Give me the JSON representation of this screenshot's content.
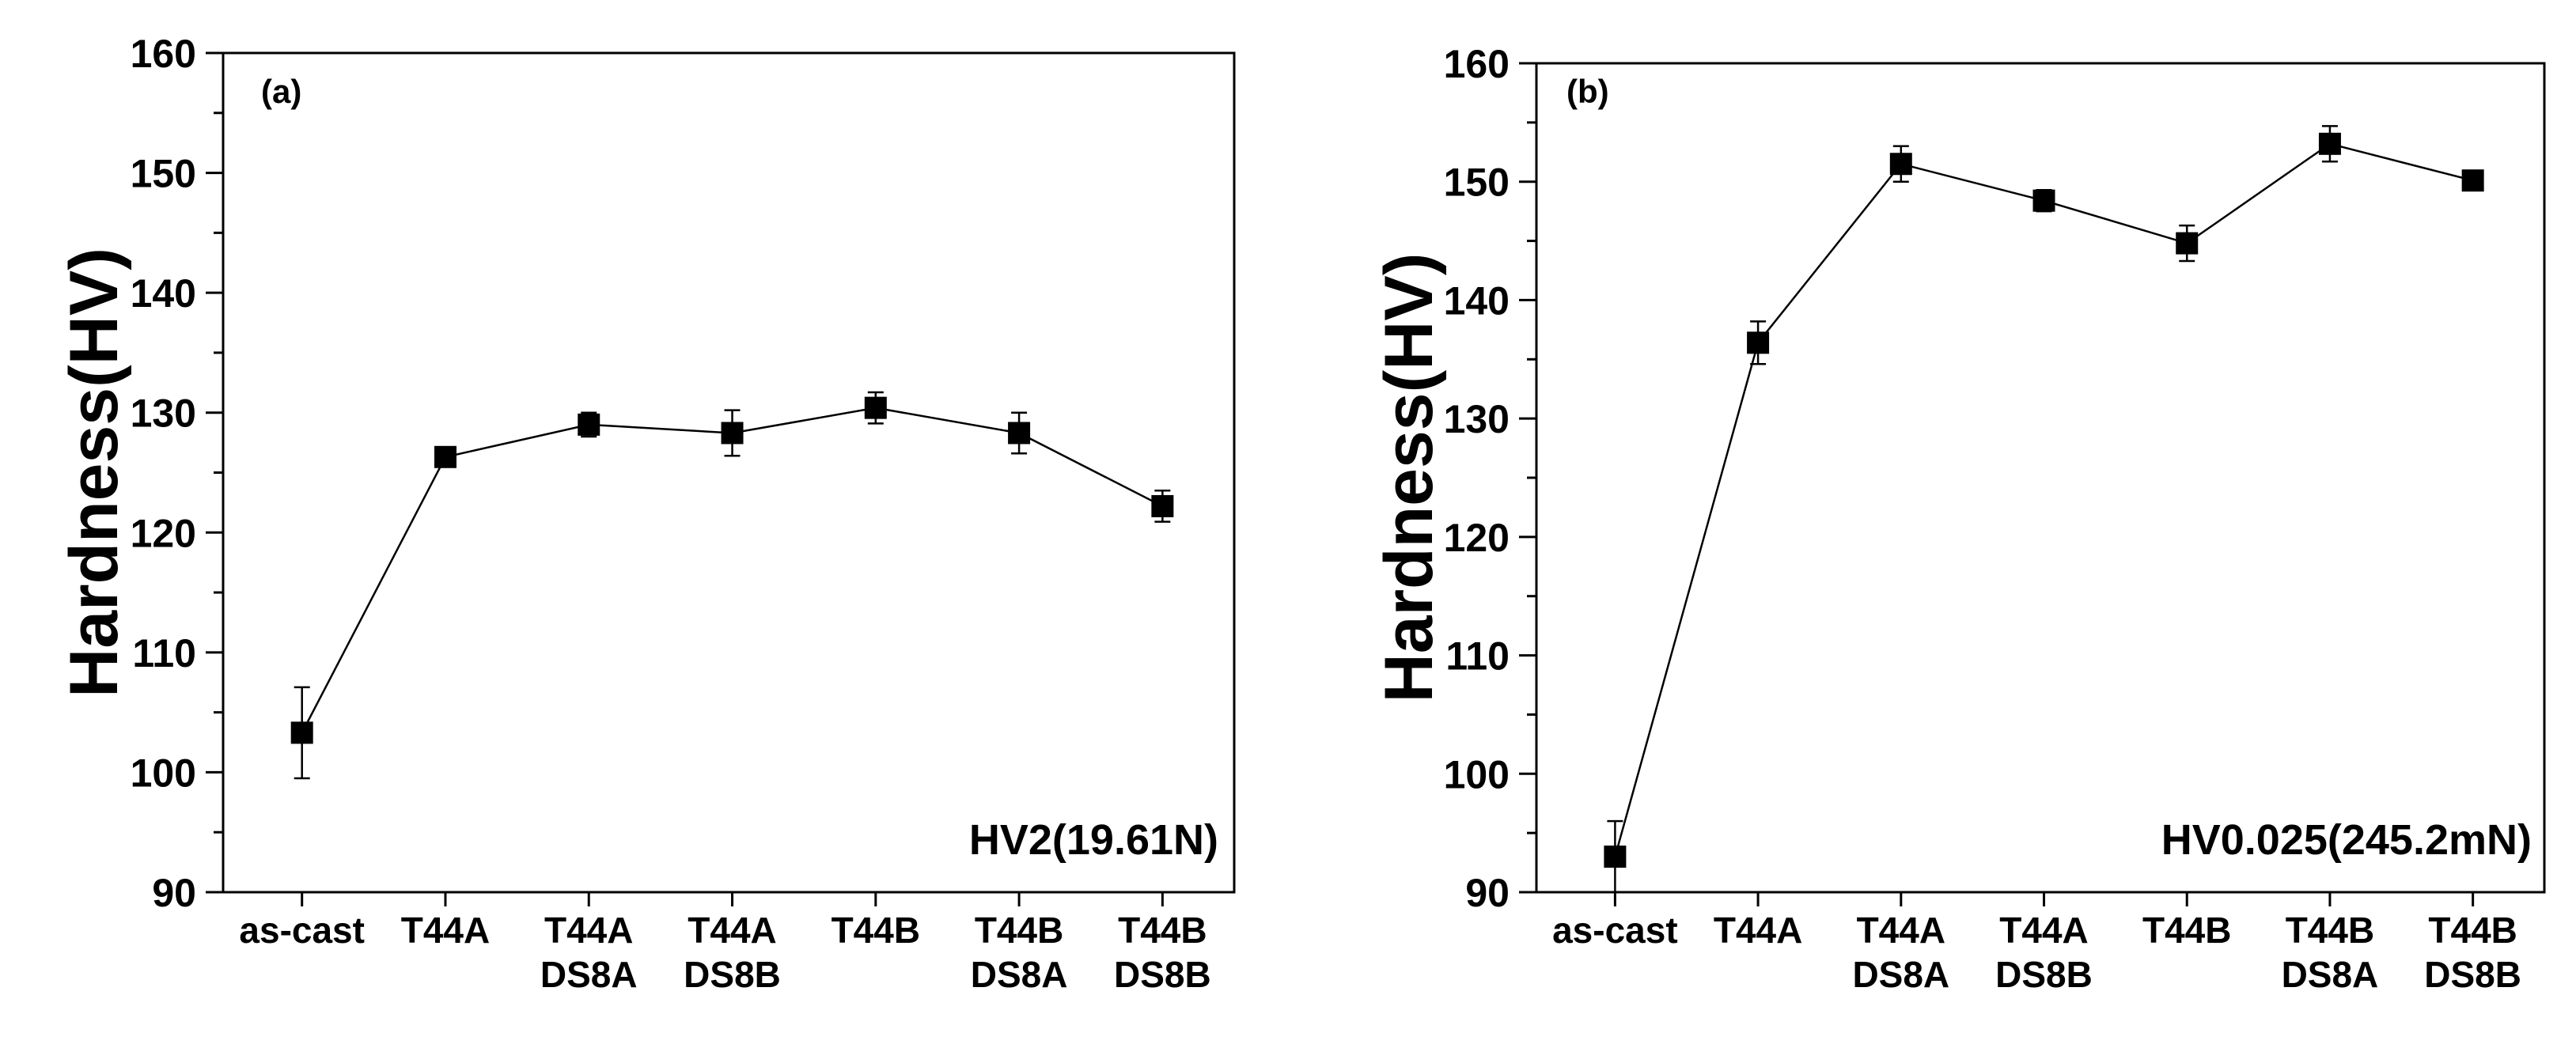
{
  "chart_data": [
    {
      "type": "line",
      "panel_label": "(a)",
      "annotation": "HV2(19.61N)",
      "xlabel": "",
      "ylabel": "Hardness(HV)",
      "ylim": [
        90,
        160
      ],
      "yticks": [
        90,
        100,
        110,
        120,
        130,
        140,
        150,
        160
      ],
      "categories": [
        "as-cast",
        "T44A",
        "T44A DS8A",
        "T44A DS8B",
        "T44B",
        "T44B DS8A",
        "T44B DS8B"
      ],
      "category_lines": [
        [
          "as-cast"
        ],
        [
          "T44A"
        ],
        [
          "T44A",
          "DS8A"
        ],
        [
          "T44A",
          "DS8B"
        ],
        [
          "T44B"
        ],
        [
          "T44B",
          "DS8A"
        ],
        [
          "T44B",
          "DS8B"
        ]
      ],
      "series": [
        {
          "values": [
            103.3,
            126.3,
            129.0,
            128.3,
            130.4,
            128.3,
            122.2
          ],
          "errors": [
            3.8,
            0.5,
            1.0,
            1.9,
            1.3,
            1.7,
            1.3
          ]
        }
      ],
      "grid": false,
      "marker": "square"
    },
    {
      "type": "line",
      "panel_label": "(b)",
      "annotation": "HV0.025(245.2mN)",
      "xlabel": "",
      "ylabel": "Hardness(HV)",
      "ylim": [
        90,
        160
      ],
      "yticks": [
        90,
        100,
        110,
        120,
        130,
        140,
        150,
        160
      ],
      "categories": [
        "as-cast",
        "T44A",
        "T44A DS8A",
        "T44A DS8B",
        "T44B",
        "T44B DS8A",
        "T44B DS8B"
      ],
      "category_lines": [
        [
          "as-cast"
        ],
        [
          "T44A"
        ],
        [
          "T44A",
          "DS8A"
        ],
        [
          "T44A",
          "DS8B"
        ],
        [
          "T44B"
        ],
        [
          "T44B",
          "DS8A"
        ],
        [
          "T44B",
          "DS8B"
        ]
      ],
      "series": [
        {
          "values": [
            93.0,
            136.4,
            151.5,
            148.4,
            144.8,
            153.2,
            150.1
          ],
          "errors": [
            3.0,
            1.8,
            1.5,
            0.9,
            1.5,
            1.5,
            0.4
          ]
        }
      ],
      "grid": false,
      "marker": "square"
    }
  ]
}
